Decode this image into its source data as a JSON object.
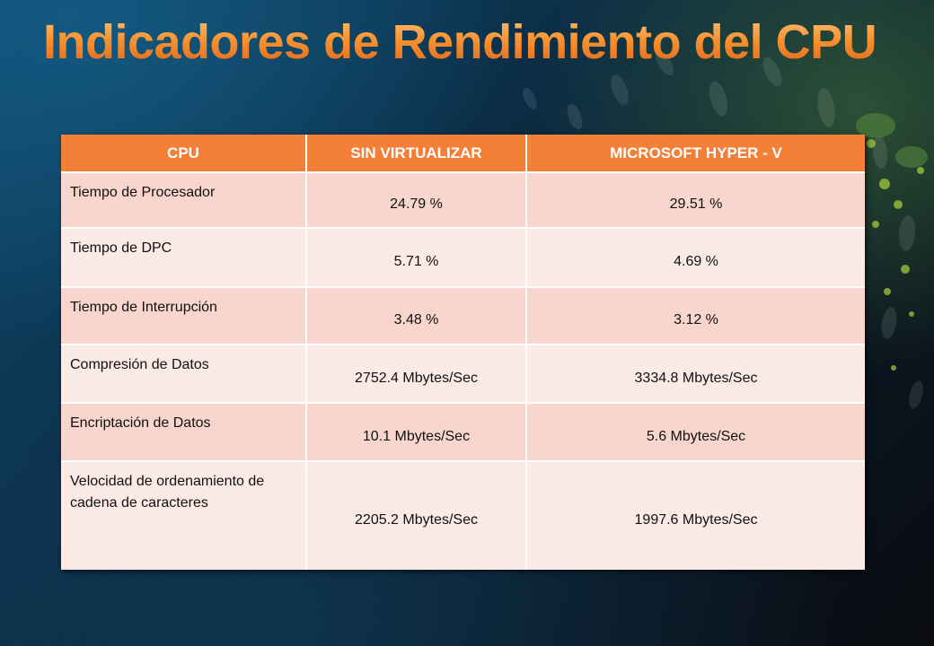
{
  "title": "Indicadores de Rendimiento del CPU",
  "table": {
    "headers": [
      "CPU",
      "SIN VIRTUALIZAR",
      "MICROSOFT HYPER - V"
    ],
    "rows": [
      {
        "label": "Tiempo de Procesador",
        "sin": "24.79 %",
        "hyperv": "29.51 %"
      },
      {
        "label": "Tiempo de DPC",
        "sin": "5.71 %",
        "hyperv": "4.69 %"
      },
      {
        "label": "Tiempo de  Interrupción",
        "sin": "3.48  %",
        "hyperv": "3.12 %"
      },
      {
        "label": "Compresión de Datos",
        "sin": "2752.4 Mbytes/Sec",
        "hyperv": "3334.8 Mbytes/Sec"
      },
      {
        "label": "Encriptación de Datos",
        "sin": "10.1 Mbytes/Sec",
        "hyperv": "5.6 Mbytes/Sec"
      },
      {
        "label": "Velocidad de ordenamiento de cadena de caracteres",
        "sin": "2205.2 Mbytes/Sec",
        "hyperv": "1997.6 Mbytes/Sec"
      }
    ]
  },
  "colors": {
    "header_bg": "#f47f37",
    "row_odd": "#f8d5cd",
    "row_even": "#fbeae6",
    "title": "#f47f37"
  }
}
